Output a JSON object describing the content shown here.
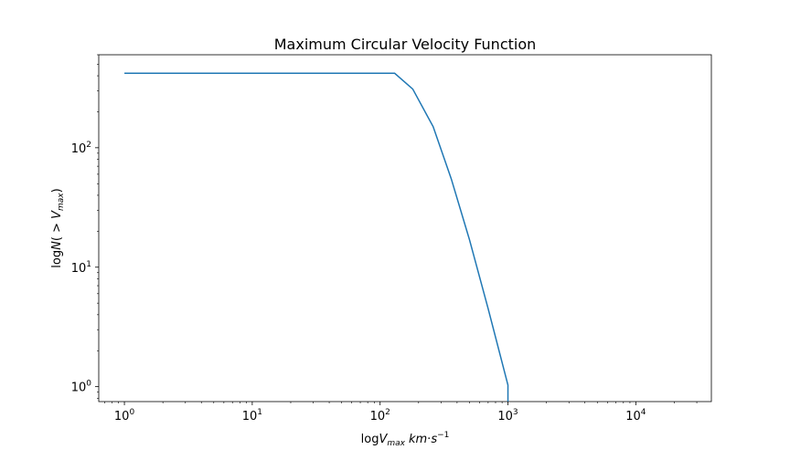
{
  "chart_data": {
    "type": "line",
    "title": "Maximum Circular Velocity Function",
    "xlabel": {
      "prefix": "log",
      "var": "V",
      "sub": "max",
      "unit": "km",
      "dot": "·",
      "unit2": "s",
      "sup": "−1"
    },
    "ylabel": {
      "prefix": "log",
      "var": "N",
      "open": "( > ",
      "var2": "V",
      "sub": "max",
      "close": ")"
    },
    "xscale": "log",
    "yscale": "log",
    "xlim": [
      0.63,
      39000
    ],
    "ylim": [
      0.75,
      600
    ],
    "grid": false,
    "x_ticks": [
      {
        "base": "10",
        "exp": "0",
        "value": 1
      },
      {
        "base": "10",
        "exp": "1",
        "value": 10
      },
      {
        "base": "10",
        "exp": "2",
        "value": 100
      },
      {
        "base": "10",
        "exp": "3",
        "value": 1000
      },
      {
        "base": "10",
        "exp": "4",
        "value": 10000
      }
    ],
    "y_ticks": [
      {
        "base": "10",
        "exp": "0",
        "value": 1
      },
      {
        "base": "10",
        "exp": "1",
        "value": 10
      },
      {
        "base": "10",
        "exp": "2",
        "value": 100
      }
    ],
    "series": [
      {
        "color": "#1f77b4",
        "x": [
          1,
          130,
          180,
          260,
          360,
          500,
          700,
          1000,
          1000
        ],
        "y": [
          420,
          420,
          310,
          150,
          55,
          17,
          4.5,
          1.03,
          0.75
        ]
      }
    ]
  }
}
